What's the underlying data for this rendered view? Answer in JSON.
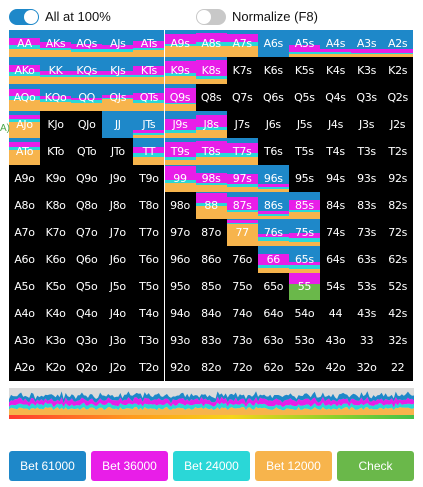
{
  "controls": {
    "all_at_100": {
      "label": "All at 100%",
      "on": true
    },
    "normalize": {
      "label": "Normalize (F8)",
      "on": false
    }
  },
  "colors": {
    "bet_61000": "#1e88c9",
    "bet_36000": "#e81ee8",
    "bet_24000": "#2ad7d7",
    "bet_12000": "#f7b44c",
    "check": "#6ab84a",
    "cell_bg": "#000000"
  },
  "edge_fragment": "A)",
  "hands": [
    [
      "AA",
      "AKs",
      "AQs",
      "AJs",
      "ATs",
      "A9s",
      "A8s",
      "A7s",
      "A6s",
      "A5s",
      "A4s",
      "A3s",
      "A2s"
    ],
    [
      "AKo",
      "KK",
      "KQs",
      "KJs",
      "KTs",
      "K9s",
      "K8s",
      "K7s",
      "K6s",
      "K5s",
      "K4s",
      "K3s",
      "K2s"
    ],
    [
      "AQo",
      "KQo",
      "QQ",
      "QJs",
      "QTs",
      "Q9s",
      "Q8s",
      "Q7s",
      "Q6s",
      "Q5s",
      "Q4s",
      "Q3s",
      "Q2s"
    ],
    [
      "AJo",
      "KJo",
      "QJo",
      "JJ",
      "JTs",
      "J9s",
      "J8s",
      "J7s",
      "J6s",
      "J5s",
      "J4s",
      "J3s",
      "J2s"
    ],
    [
      "ATo",
      "KTo",
      "QTo",
      "JTo",
      "TT",
      "T9s",
      "T8s",
      "T7s",
      "T6s",
      "T5s",
      "T4s",
      "T3s",
      "T2s"
    ],
    [
      "A9o",
      "K9o",
      "Q9o",
      "J9o",
      "T9o",
      "99",
      "98s",
      "97s",
      "96s",
      "95s",
      "94s",
      "93s",
      "92s"
    ],
    [
      "A8o",
      "K8o",
      "Q8o",
      "J8o",
      "T8o",
      "98o",
      "88",
      "87s",
      "86s",
      "85s",
      "84s",
      "83s",
      "82s"
    ],
    [
      "A7o",
      "K7o",
      "Q7o",
      "J7o",
      "T7o",
      "97o",
      "87o",
      "77",
      "76s",
      "75s",
      "74s",
      "73s",
      "72s"
    ],
    [
      "A6o",
      "K6o",
      "Q6o",
      "J6o",
      "T6o",
      "96o",
      "86o",
      "76o",
      "66",
      "65s",
      "64s",
      "63s",
      "62s"
    ],
    [
      "A5o",
      "K5o",
      "Q5o",
      "J5o",
      "T5o",
      "95o",
      "85o",
      "75o",
      "65o",
      "55",
      "54s",
      "53s",
      "52s"
    ],
    [
      "A4o",
      "K4o",
      "Q4o",
      "J4o",
      "T4o",
      "94o",
      "84o",
      "74o",
      "64o",
      "54o",
      "44",
      "43s",
      "42s"
    ],
    [
      "A3o",
      "K3o",
      "Q3o",
      "J3o",
      "T3o",
      "93o",
      "83o",
      "73o",
      "63o",
      "53o",
      "43o",
      "33",
      "32s"
    ],
    [
      "A2o",
      "K2o",
      "Q2o",
      "J2o",
      "T2o",
      "92o",
      "82o",
      "72o",
      "62o",
      "52o",
      "42o",
      "32o",
      "22"
    ]
  ],
  "strategy": {
    "AA": [
      0.3,
      0.25,
      0.15,
      0.3,
      0
    ],
    "AKs": [
      0.45,
      0.2,
      0.1,
      0.25,
      0
    ],
    "AQs": [
      0.5,
      0.2,
      0.1,
      0.2,
      0
    ],
    "AJs": [
      0.55,
      0.15,
      0.1,
      0.2,
      0
    ],
    "ATs": [
      0.4,
      0.25,
      0.1,
      0.25,
      0
    ],
    "A9s": [
      0.15,
      0.35,
      0.1,
      0.4,
      0
    ],
    "A8s": [
      0.1,
      0.35,
      0.15,
      0.4,
      0
    ],
    "A7s": [
      0.15,
      0.3,
      0.15,
      0.4,
      0
    ],
    "A6s": [
      1,
      0,
      0,
      0,
      0
    ],
    "A5s": [
      0.55,
      0.25,
      0.1,
      0.1,
      0
    ],
    "A4s": [
      0.7,
      0.1,
      0.1,
      0.1,
      0
    ],
    "A3s": [
      0.7,
      0.15,
      0.05,
      0.1,
      0
    ],
    "A2s": [
      0.7,
      0.15,
      0.05,
      0.1,
      0
    ],
    "AKo": [
      0.3,
      0.25,
      0.15,
      0.3,
      0
    ],
    "KK": [
      0.5,
      0.15,
      0.1,
      0.25,
      0
    ],
    "KQs": [
      0.5,
      0.15,
      0.1,
      0.25,
      0
    ],
    "KJs": [
      0.5,
      0.15,
      0.1,
      0.25,
      0
    ],
    "KTs": [
      0.35,
      0.3,
      0.1,
      0.25,
      0
    ],
    "K9s": [
      0.15,
      0.45,
      0.1,
      0.3,
      0
    ],
    "K8s": [
      0.1,
      0.6,
      0.1,
      0.2,
      0
    ],
    "AQo": [
      0.2,
      0.25,
      0.15,
      0.4,
      0
    ],
    "KQo": [
      0.45,
      0.1,
      0.1,
      0.35,
      0
    ],
    "QQ": [
      0.5,
      0.1,
      0.1,
      0.3,
      0
    ],
    "QJs": [
      0.4,
      0.1,
      0.05,
      0.45,
      0
    ],
    "QTs": [
      0.35,
      0.25,
      0.1,
      0.3,
      0
    ],
    "Q9s": [
      0.15,
      0.55,
      0.05,
      0.25,
      0
    ],
    "AJo": [
      0.15,
      0.15,
      0.1,
      0.6,
      0
    ],
    "JJ": [
      1,
      0,
      0,
      0,
      0
    ],
    "JTs": [
      0.7,
      0.1,
      0.1,
      0.1,
      0
    ],
    "J9s": [
      0.3,
      0.4,
      0.1,
      0.2,
      0
    ],
    "J8s": [
      0.15,
      0.45,
      0.1,
      0.3,
      0
    ],
    "ATo": [
      0.15,
      0.2,
      0.1,
      0.55,
      0
    ],
    "TT": [
      0.35,
      0.2,
      0.15,
      0.3,
      0
    ],
    "T9s": [
      0.15,
      0.55,
      0.1,
      0.2,
      0
    ],
    "T8s": [
      0.1,
      0.45,
      0.15,
      0.3,
      0
    ],
    "T7s": [
      0.2,
      0.35,
      0.15,
      0.3,
      0
    ],
    "99": [
      0.05,
      0.5,
      0.1,
      0.35,
      0
    ],
    "98s": [
      0.3,
      0.35,
      0.1,
      0.25,
      0
    ],
    "97s": [
      0.35,
      0.35,
      0.1,
      0.2,
      0
    ],
    "96s": [
      0.7,
      0.1,
      0.1,
      0.1,
      0
    ],
    "88": [
      0.05,
      0.35,
      0.1,
      0.5,
      0
    ],
    "87s": [
      0.2,
      0.45,
      0.1,
      0.25,
      0
    ],
    "86s": [
      0.7,
      0.1,
      0.1,
      0.1,
      0
    ],
    "85s": [
      0.3,
      0.35,
      0.1,
      0.25,
      0
    ],
    "77": [
      0.05,
      0.1,
      0.05,
      0.8,
      0
    ],
    "76s": [
      0.55,
      0.1,
      0.15,
      0.2,
      0
    ],
    "75s": [
      0.5,
      0.2,
      0.15,
      0.15,
      0
    ],
    "66": [
      0.3,
      0.4,
      0.1,
      0.2,
      0
    ],
    "65s": [
      0.6,
      0.1,
      0.15,
      0.15,
      0
    ],
    "55": [
      0,
      0.4,
      0,
      0,
      0.6
    ]
  },
  "actions": [
    {
      "label": "Bet 61000",
      "color": "#1e88c9"
    },
    {
      "label": "Bet 36000",
      "color": "#e81ee8"
    },
    {
      "label": "Bet 24000",
      "color": "#2ad7d7"
    },
    {
      "label": "Bet 12000",
      "color": "#f7b44c"
    },
    {
      "label": "Check",
      "color": "#6ab84a"
    }
  ]
}
